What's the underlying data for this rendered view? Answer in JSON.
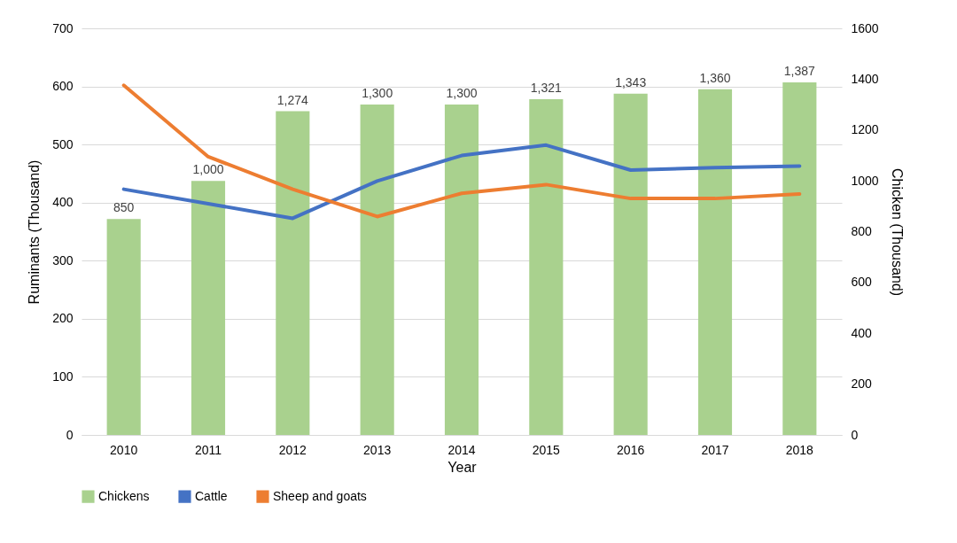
{
  "chart_data": {
    "type": "bar",
    "categories": [
      "2010",
      "2011",
      "2012",
      "2013",
      "2014",
      "2015",
      "2016",
      "2017",
      "2018"
    ],
    "xlabel": "Year",
    "ylabel": "Ruminants (Thousand)",
    "y2label": "Chicken (Thousand)",
    "ylim": [
      0,
      700
    ],
    "yticks": [
      0,
      100,
      200,
      300,
      400,
      500,
      600,
      700
    ],
    "y2lim": [
      0,
      1600
    ],
    "y2ticks": [
      0,
      200,
      400,
      600,
      800,
      1000,
      1200,
      1400,
      1600
    ],
    "grid": "y",
    "legend": "bottom",
    "series": [
      {
        "name": "Chickens",
        "axis": "y2",
        "color": "#a9d18e",
        "values": [
          850,
          1000,
          1274,
          1300,
          1300,
          1321,
          1343,
          1360,
          1387
        ],
        "value_labels": [
          "850",
          "1,000",
          "1,274",
          "1,300",
          "1,300",
          "1,321",
          "1,343",
          "1,360",
          "1,387"
        ]
      },
      {
        "name": "Cattle",
        "type": "line",
        "color": "#4472c4",
        "values": [
          423,
          398,
          373,
          437,
          481,
          499,
          456,
          460,
          463
        ]
      },
      {
        "name": "Sheep and goats",
        "type": "line",
        "color": "#ed7d31",
        "values": [
          602,
          479,
          423,
          376,
          416,
          431,
          407,
          407,
          415
        ]
      }
    ]
  }
}
